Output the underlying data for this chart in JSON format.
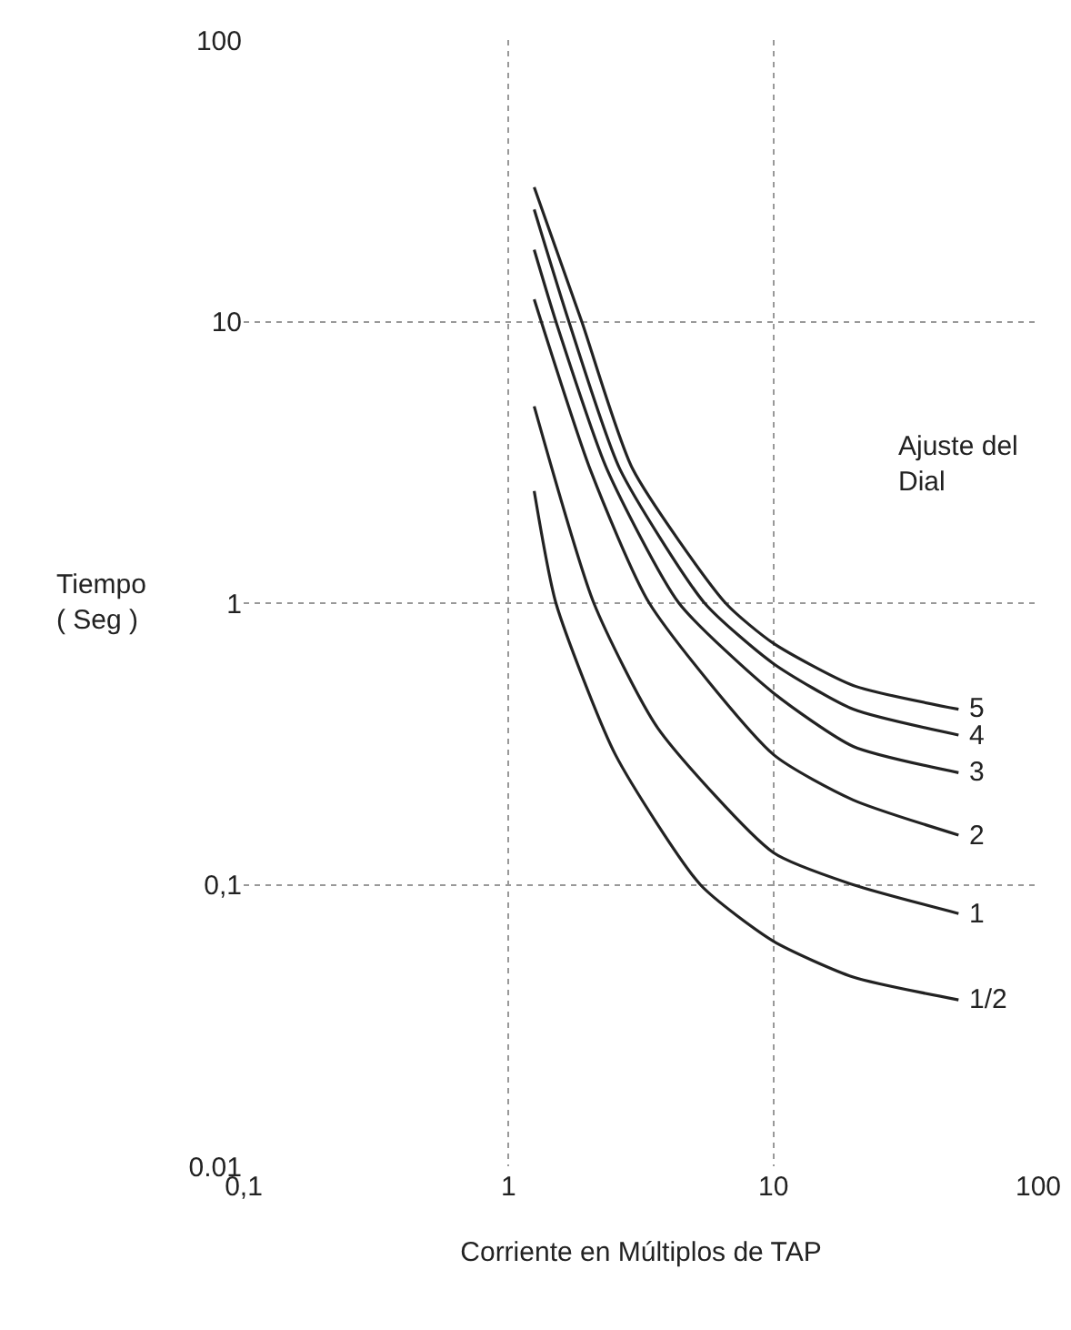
{
  "chart_data": {
    "type": "line",
    "xlabel": "Corriente en Múltiplos de TAP",
    "ylabel": "Tiempo\n( Seg )",
    "log": "xy",
    "grid": true,
    "legend": false,
    "marker": "none",
    "line_style": "solid",
    "xlim": [
      0.1,
      100
    ],
    "xticks": [
      {
        "value": 0.1,
        "label": "0,1"
      },
      1,
      10,
      100
    ],
    "ylim": [
      0.01,
      100
    ],
    "yticks": [
      {
        "value": 0.01,
        "label": "0.01"
      },
      {
        "value": 0.1,
        "label": "0,1"
      },
      1,
      10,
      100
    ],
    "legend_title": "Ajuste del\nDial",
    "series": [
      {
        "name": "5",
        "color": "#222222",
        "x": [
          1.25,
          1.89,
          2.94,
          6.6,
          10,
          20,
          50
        ],
        "values": [
          30,
          10,
          3,
          1,
          0.72,
          0.51,
          0.42
        ]
      },
      {
        "name": "4",
        "color": "#222222",
        "x": [
          1.25,
          1.69,
          2.63,
          5.5,
          10,
          20,
          50
        ],
        "values": [
          25,
          10,
          3,
          1,
          0.61,
          0.42,
          0.34
        ]
      },
      {
        "name": "3",
        "color": "#222222",
        "x": [
          1.25,
          1.51,
          2.35,
          4.4,
          10,
          20,
          50
        ],
        "values": [
          18,
          10,
          3,
          1,
          0.48,
          0.31,
          0.25
        ]
      },
      {
        "name": "2",
        "color": "#222222",
        "x": [
          1.25,
          2.03,
          3.4,
          10,
          20,
          50
        ],
        "values": [
          12,
          3,
          1,
          0.29,
          0.2,
          0.15
        ]
      },
      {
        "name": "1",
        "color": "#222222",
        "x": [
          1.25,
          2.1,
          3.66,
          10,
          20,
          50
        ],
        "values": [
          5,
          1,
          0.36,
          0.13,
          0.1,
          0.079
        ]
      },
      {
        "name": "1/2",
        "color": "#222222",
        "x": [
          1.25,
          1.51,
          2.53,
          5.3,
          10,
          20,
          50
        ],
        "values": [
          2.5,
          1,
          0.29,
          0.1,
          0.063,
          0.047,
          0.039
        ]
      }
    ]
  }
}
